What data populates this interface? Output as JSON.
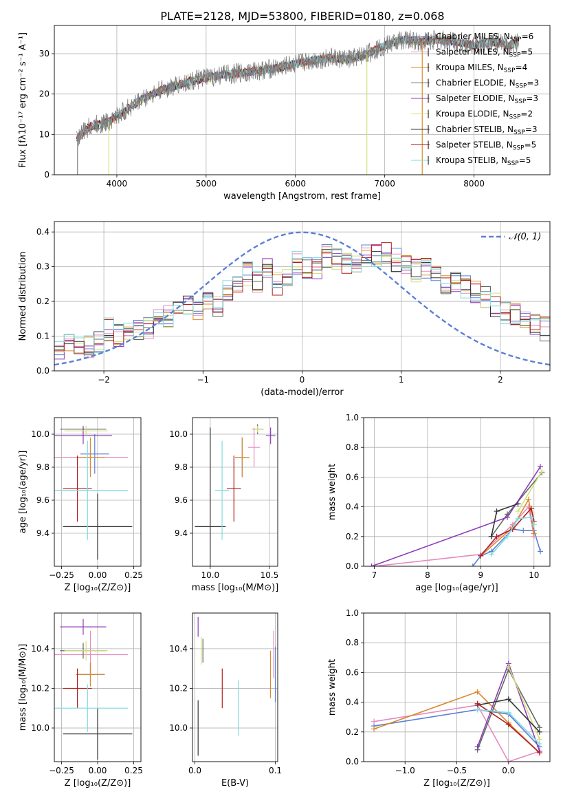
{
  "figure_title": "PLATE=2128, MJD=53800, FIBERID=0180, z=0.068",
  "colors": {
    "Chabrier MILES": "#5b7fd6",
    "Salpeter MILES": "#e58ac0",
    "Kroupa MILES": "#d98a2b",
    "Chabrier ELODIE": "#5f6b62",
    "Salpeter ELODIE": "#8e3bb8",
    "Kroupa ELODIE": "#d4e07a",
    "Chabrier STELIB": "#333333",
    "Salpeter STELIB": "#b21d1d",
    "Kroupa STELIB": "#82dbe0",
    "data": "#808080",
    "normal": "#5b7fd6"
  },
  "chart_data": [
    {
      "id": "spectrum",
      "type": "line",
      "title": "PLATE=2128, MJD=53800, FIBERID=0180, z=0.068",
      "xlabel": "wavelength [Angstrom, rest frame]",
      "ylabel": "Flux [fλ10⁻¹⁷ erg cm⁻² s⁻¹ A⁻¹]",
      "xlim": [
        3300,
        8850
      ],
      "ylim": [
        0,
        37
      ],
      "xticks": [
        4000,
        5000,
        6000,
        7000,
        8000
      ],
      "yticks": [
        0,
        10,
        20,
        30
      ],
      "legend_position": "top-right",
      "legend": [
        {
          "name": "Chabrier MILES",
          "suffix": "=6"
        },
        {
          "name": "Salpeter MILES",
          "suffix": "=5"
        },
        {
          "name": "Kroupa MILES",
          "suffix": "=4"
        },
        {
          "name": "Chabrier ELODIE",
          "suffix": "=3"
        },
        {
          "name": "Salpeter ELODIE",
          "suffix": "=3"
        },
        {
          "name": "Kroupa ELODIE",
          "suffix": "=2"
        },
        {
          "name": "Chabrier STELIB",
          "suffix": "=3"
        },
        {
          "name": "Salpeter STELIB",
          "suffix": "=5"
        },
        {
          "name": "Kroupa STELIB",
          "suffix": "=5"
        }
      ],
      "continuum": [
        [
          3550,
          9
        ],
        [
          3700,
          12
        ],
        [
          3900,
          13
        ],
        [
          4100,
          16
        ],
        [
          4300,
          19
        ],
        [
          4500,
          21
        ],
        [
          4800,
          23
        ],
        [
          5000,
          24
        ],
        [
          5200,
          24.8
        ],
        [
          5500,
          25.5
        ],
        [
          5800,
          26.5
        ],
        [
          6100,
          28
        ],
        [
          6400,
          29
        ],
        [
          6600,
          28.5
        ],
        [
          6800,
          30
        ],
        [
          7000,
          32
        ],
        [
          7200,
          33.5
        ],
        [
          7400,
          33
        ],
        [
          7600,
          33.5
        ],
        [
          7800,
          33
        ],
        [
          8000,
          32
        ],
        [
          8200,
          33
        ],
        [
          8400,
          32
        ],
        [
          8500,
          33
        ]
      ],
      "spikes": [
        {
          "x": 3560,
          "series": "data",
          "low": 0
        },
        {
          "x": 3910,
          "series": "Kroupa ELODIE",
          "low": 0
        },
        {
          "x": 6800,
          "series": "Kroupa ELODIE",
          "low": 0
        },
        {
          "x": 7420,
          "series": "Kroupa MILES",
          "low": 0
        }
      ]
    },
    {
      "id": "residuals",
      "type": "histogram",
      "xlabel": "(data-model)/error",
      "ylabel": "Normed distribution",
      "xlim": [
        -2.5,
        2.5
      ],
      "ylim": [
        0,
        0.43
      ],
      "xticks": [
        -2,
        -1,
        0,
        1,
        2
      ],
      "yticks": [
        0.0,
        0.1,
        0.2,
        0.3,
        0.4
      ],
      "bin_start": -2.5,
      "bin_width": 0.1,
      "legend_position": "top-right",
      "normal_label": "𝒩(0, 1)",
      "base_heights": [
        0.05,
        0.07,
        0.07,
        0.07,
        0.08,
        0.12,
        0.1,
        0.11,
        0.12,
        0.12,
        0.15,
        0.16,
        0.18,
        0.19,
        0.18,
        0.21,
        0.19,
        0.23,
        0.24,
        0.28,
        0.26,
        0.29,
        0.25,
        0.28,
        0.31,
        0.3,
        0.3,
        0.33,
        0.32,
        0.31,
        0.31,
        0.34,
        0.33,
        0.34,
        0.32,
        0.31,
        0.29,
        0.29,
        0.27,
        0.25,
        0.25,
        0.24,
        0.23,
        0.21,
        0.19,
        0.17,
        0.16,
        0.15,
        0.14,
        0.12,
        0.11,
        0.1,
        0.09,
        0.08,
        0.07
      ]
    },
    {
      "id": "age-vs-z",
      "type": "errorbar",
      "xlabel": "Z [log₁₀(Z/Z⊙)]",
      "ylabel": "age  [log₁₀(age/yr)]",
      "xlim": [
        -0.3,
        0.3
      ],
      "ylim": [
        9.2,
        10.1
      ],
      "xticks": [
        -0.25,
        0.0,
        0.25
      ],
      "yticks": [
        9.4,
        9.6,
        9.8,
        10.0
      ],
      "points": [
        {
          "series": "Chabrier MILES",
          "x": -0.02,
          "xerr": 0.1,
          "y": 9.88,
          "yerr": 0.12
        },
        {
          "series": "Salpeter MILES",
          "x": -0.05,
          "xerr": 0.26,
          "y": 9.86,
          "yerr": 0.09
        },
        {
          "series": "Kroupa MILES",
          "x": -0.05,
          "xerr": 0.1,
          "y": 9.86,
          "yerr": 0.12
        },
        {
          "series": "Chabrier ELODIE",
          "x": -0.1,
          "xerr": 0.16,
          "y": 10.03,
          "yerr": 0.02
        },
        {
          "series": "Salpeter ELODIE",
          "x": -0.1,
          "xerr": 0.2,
          "y": 9.99,
          "yerr": 0.05
        },
        {
          "series": "Kroupa ELODIE",
          "x": -0.08,
          "xerr": 0.15,
          "y": 10.02,
          "yerr": 0.03
        },
        {
          "series": "Chabrier STELIB",
          "x": 0.0,
          "xerr": 0.24,
          "y": 9.44,
          "yerr": 0.2
        },
        {
          "series": "Salpeter STELIB",
          "x": -0.14,
          "xerr": 0.1,
          "y": 9.67,
          "yerr": 0.2
        },
        {
          "series": "Kroupa STELIB",
          "x": -0.07,
          "xerr": 0.28,
          "y": 9.66,
          "yerr": 0.3
        }
      ]
    },
    {
      "id": "age-vs-mass",
      "type": "errorbar",
      "xlabel": "mass [log₁₀(M/M⊙)]",
      "ylabel": "",
      "xlim": [
        9.85,
        10.57
      ],
      "ylim": [
        9.2,
        10.1
      ],
      "xticks": [
        10.0,
        10.5
      ],
      "yticks": [
        9.4,
        9.6,
        9.8,
        10.0
      ],
      "points": [
        {
          "series": "Chabrier MILES",
          "x": 10.27,
          "xerr": 0.06,
          "y": 9.86,
          "yerr": 0.12
        },
        {
          "series": "Salpeter MILES",
          "x": 10.37,
          "xerr": 0.05,
          "y": 9.92,
          "yerr": 0.12
        },
        {
          "series": "Kroupa MILES",
          "x": 10.27,
          "xerr": 0.06,
          "y": 9.86,
          "yerr": 0.12
        },
        {
          "series": "Chabrier ELODIE",
          "x": 10.4,
          "xerr": 0.05,
          "y": 10.03,
          "yerr": 0.03
        },
        {
          "series": "Salpeter ELODIE",
          "x": 10.51,
          "xerr": 0.04,
          "y": 9.99,
          "yerr": 0.05
        },
        {
          "series": "Kroupa ELODIE",
          "x": 10.4,
          "xerr": 0.05,
          "y": 10.03,
          "yerr": 0.02
        },
        {
          "series": "Chabrier STELIB",
          "x": 10.0,
          "xerr": 0.13,
          "y": 9.44,
          "yerr": 0.6
        },
        {
          "series": "Salpeter STELIB",
          "x": 10.2,
          "xerr": 0.06,
          "y": 9.67,
          "yerr": 0.2
        },
        {
          "series": "Kroupa STELIB",
          "x": 10.1,
          "xerr": 0.06,
          "y": 9.66,
          "yerr": 0.3
        }
      ]
    },
    {
      "id": "weight-vs-age",
      "type": "line",
      "xlabel": "age  [log₁₀(age/yr)]",
      "ylabel": "mass weight",
      "xlim": [
        6.8,
        10.3
      ],
      "ylim": [
        0,
        1
      ],
      "xticks": [
        7,
        8,
        9,
        10
      ],
      "yticks": [
        0.0,
        0.2,
        0.4,
        0.6,
        0.8,
        1.0
      ],
      "series": [
        {
          "name": "Chabrier MILES",
          "points": [
            [
              8.85,
              0.0
            ],
            [
              9.0,
              0.07
            ],
            [
              9.2,
              0.1
            ],
            [
              9.6,
              0.25
            ],
            [
              9.8,
              0.24
            ],
            [
              10.0,
              0.24
            ],
            [
              10.12,
              0.1
            ]
          ]
        },
        {
          "name": "Salpeter MILES",
          "points": [
            [
              7.0,
              0.0
            ],
            [
              9.0,
              0.08
            ],
            [
              9.6,
              0.28
            ],
            [
              9.9,
              0.4
            ],
            [
              10.0,
              0.2
            ]
          ]
        },
        {
          "name": "Kroupa MILES",
          "points": [
            [
              9.0,
              0.07
            ],
            [
              9.6,
              0.26
            ],
            [
              9.9,
              0.45
            ],
            [
              10.0,
              0.22
            ]
          ]
        },
        {
          "name": "Chabrier ELODIE",
          "points": [
            [
              9.2,
              0.2
            ],
            [
              9.5,
              0.35
            ],
            [
              10.15,
              0.63
            ]
          ]
        },
        {
          "name": "Salpeter ELODIE",
          "points": [
            [
              6.95,
              0.0
            ],
            [
              9.5,
              0.33
            ],
            [
              10.12,
              0.67
            ]
          ]
        },
        {
          "name": "Kroupa ELODIE",
          "points": [
            [
              9.7,
              0.37
            ],
            [
              10.15,
              0.64
            ]
          ]
        },
        {
          "name": "Chabrier STELIB",
          "points": [
            [
              9.2,
              0.2
            ],
            [
              9.3,
              0.37
            ],
            [
              9.7,
              0.42
            ]
          ]
        },
        {
          "name": "Salpeter STELIB",
          "points": [
            [
              9.0,
              0.07
            ],
            [
              9.3,
              0.2
            ],
            [
              9.6,
              0.25
            ],
            [
              9.95,
              0.39
            ],
            [
              10.0,
              0.3
            ]
          ]
        },
        {
          "name": "Kroupa STELIB",
          "points": [
            [
              9.2,
              0.08
            ],
            [
              9.5,
              0.2
            ],
            [
              9.7,
              0.32
            ],
            [
              9.95,
              0.33
            ],
            [
              10.0,
              0.28
            ]
          ]
        }
      ]
    },
    {
      "id": "mass-vs-z",
      "type": "errorbar",
      "xlabel": "Z [log₁₀(Z/Z⊙)]",
      "ylabel": "mass [log₁₀(M/M⊙)]",
      "xlim": [
        -0.3,
        0.3
      ],
      "ylim": [
        9.83,
        10.58
      ],
      "xticks": [
        -0.25,
        0.0,
        0.25
      ],
      "yticks": [
        10.0,
        10.2,
        10.4
      ],
      "points": [
        {
          "series": "Chabrier MILES",
          "x": -0.05,
          "xerr": 0.1,
          "y": 10.27,
          "yerr": 0.06
        },
        {
          "series": "Salpeter MILES",
          "x": -0.05,
          "xerr": 0.26,
          "y": 10.37,
          "yerr": 0.12
        },
        {
          "series": "Kroupa MILES",
          "x": -0.05,
          "xerr": 0.1,
          "y": 10.27,
          "yerr": 0.06
        },
        {
          "series": "Chabrier ELODIE",
          "x": -0.1,
          "xerr": 0.16,
          "y": 10.39,
          "yerr": 0.04
        },
        {
          "series": "Salpeter ELODIE",
          "x": -0.1,
          "xerr": 0.16,
          "y": 10.51,
          "yerr": 0.04
        },
        {
          "series": "Kroupa ELODIE",
          "x": -0.08,
          "xerr": 0.15,
          "y": 10.39,
          "yerr": 0.05
        },
        {
          "series": "Chabrier STELIB",
          "x": 0.0,
          "xerr": 0.24,
          "y": 9.97,
          "yerr": 0.13
        },
        {
          "series": "Salpeter STELIB",
          "x": -0.14,
          "xerr": 0.1,
          "y": 10.2,
          "yerr": 0.1
        },
        {
          "series": "Kroupa STELIB",
          "x": -0.07,
          "xerr": 0.28,
          "y": 10.1,
          "yerr": 0.12
        }
      ]
    },
    {
      "id": "mass-vs-ebv",
      "type": "errorbar",
      "xlabel": "E(B-V)",
      "ylabel": "",
      "xlim": [
        -0.003,
        0.103
      ],
      "ylim": [
        9.83,
        10.58
      ],
      "xticks": [
        0.0,
        0.1
      ],
      "yticks": [
        10.0,
        10.2,
        10.4
      ],
      "points": [
        {
          "series": "Chabrier MILES",
          "x": 0.1,
          "xerr": 0,
          "y": 10.27,
          "yerr": 0.14
        },
        {
          "series": "Salpeter MILES",
          "x": 0.098,
          "xerr": 0,
          "y": 10.37,
          "yerr": 0.12
        },
        {
          "series": "Kroupa MILES",
          "x": 0.094,
          "xerr": 0,
          "y": 10.27,
          "yerr": 0.12
        },
        {
          "series": "Chabrier ELODIE",
          "x": 0.01,
          "xerr": 0,
          "y": 10.39,
          "yerr": 0.06
        },
        {
          "series": "Salpeter ELODIE",
          "x": 0.004,
          "xerr": 0,
          "y": 10.51,
          "yerr": 0.05
        },
        {
          "series": "Kroupa ELODIE",
          "x": 0.008,
          "xerr": 0,
          "y": 10.39,
          "yerr": 0.07
        },
        {
          "series": "Chabrier STELIB",
          "x": 0.004,
          "xerr": 0,
          "y": 10.0,
          "yerr": 0.14
        },
        {
          "series": "Salpeter STELIB",
          "x": 0.034,
          "xerr": 0,
          "y": 10.2,
          "yerr": 0.1
        },
        {
          "series": "Kroupa STELIB",
          "x": 0.054,
          "xerr": 0,
          "y": 10.1,
          "yerr": 0.14
        }
      ]
    },
    {
      "id": "weight-vs-z",
      "type": "line",
      "xlabel": "Z [log₁₀(Z/Z⊙)]",
      "ylabel": "mass weight",
      "xlim": [
        -1.4,
        0.4
      ],
      "ylim": [
        0,
        1
      ],
      "xticks": [
        -1.0,
        -0.5,
        0.0
      ],
      "yticks": [
        0.0,
        0.2,
        0.4,
        0.6,
        0.8,
        1.0
      ],
      "series": [
        {
          "name": "Chabrier MILES",
          "points": [
            [
              -1.3,
              0.24
            ],
            [
              -0.3,
              0.35
            ],
            [
              0.0,
              0.32
            ],
            [
              0.3,
              0.1
            ]
          ]
        },
        {
          "name": "Salpeter MILES",
          "points": [
            [
              -1.3,
              0.27
            ],
            [
              -0.3,
              0.38
            ],
            [
              0.0,
              0.0
            ],
            [
              0.3,
              0.07
            ]
          ]
        },
        {
          "name": "Kroupa MILES",
          "points": [
            [
              -1.3,
              0.22
            ],
            [
              -0.3,
              0.47
            ],
            [
              0.0,
              0.26
            ],
            [
              0.3,
              0.06
            ]
          ]
        },
        {
          "name": "Chabrier ELODIE",
          "points": [
            [
              -0.3,
              0.08
            ],
            [
              0.0,
              0.62
            ],
            [
              0.3,
              0.23
            ]
          ]
        },
        {
          "name": "Salpeter ELODIE",
          "points": [
            [
              -0.3,
              0.1
            ],
            [
              0.0,
              0.66
            ],
            [
              0.3,
              0.07
            ]
          ]
        },
        {
          "name": "Kroupa ELODIE",
          "points": [
            [
              0.0,
              0.64
            ],
            [
              0.3,
              0.15
            ]
          ]
        },
        {
          "name": "Chabrier STELIB",
          "points": [
            [
              -0.3,
              0.38
            ],
            [
              0.0,
              0.42
            ],
            [
              0.3,
              0.2
            ]
          ]
        },
        {
          "name": "Salpeter STELIB",
          "points": [
            [
              -0.3,
              0.39
            ],
            [
              0.0,
              0.25
            ],
            [
              0.3,
              0.06
            ]
          ]
        },
        {
          "name": "Kroupa STELIB",
          "points": [
            [
              -0.3,
              0.35
            ],
            [
              0.0,
              0.33
            ],
            [
              0.3,
              0.12
            ]
          ]
        }
      ]
    }
  ]
}
